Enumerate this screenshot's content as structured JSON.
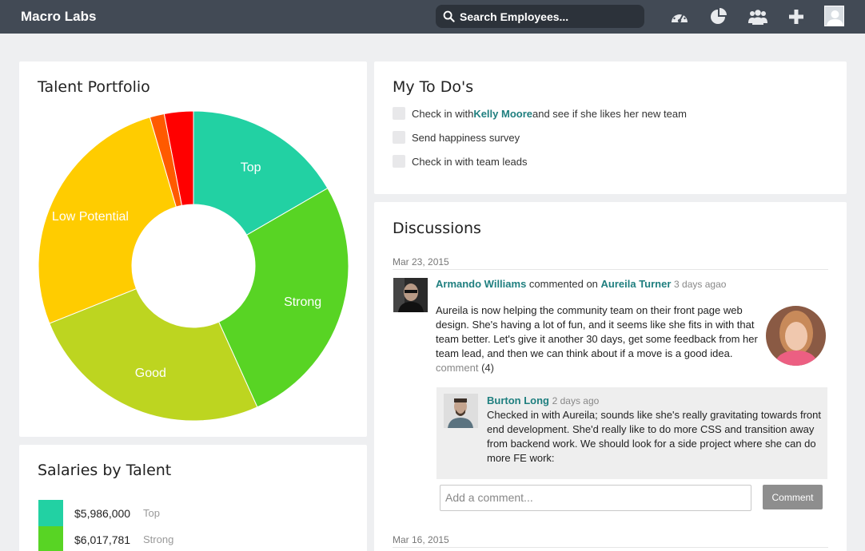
{
  "header": {
    "brand": "Macro Labs",
    "search_placeholder": "Search Employees...",
    "icons": [
      "dashboard-icon",
      "pie-chart-icon",
      "users-icon",
      "plus-icon",
      "avatar"
    ]
  },
  "talent_portfolio": {
    "title": "Talent Portfolio",
    "chart_data": {
      "type": "pie",
      "donut": true,
      "slices": [
        {
          "label": "Top",
          "value": 16.5,
          "color": "#22d1a3"
        },
        {
          "label": "Strong",
          "value": 26.4,
          "color": "#58d424"
        },
        {
          "label": "Good",
          "value": 25.5,
          "color": "#bdd520"
        },
        {
          "label": "Low Potential",
          "value": 26.3,
          "color": "#ffcc00"
        },
        {
          "label": "",
          "value": 1.5,
          "color": "#ff5a00"
        },
        {
          "label": "",
          "value": 3.0,
          "color": "#ff0000"
        }
      ]
    }
  },
  "salaries": {
    "title": "Salaries by Talent",
    "rows": [
      {
        "value": "$5,986,000",
        "label": "Top",
        "color": "#22d1a3"
      },
      {
        "value": "$6,017,781",
        "label": "Strong",
        "color": "#58d424"
      }
    ]
  },
  "todos": {
    "title": "My To Do's",
    "items": [
      {
        "prefix": "Check in with ",
        "link": "Kelly Moore",
        "suffix": " and see if she likes her new team"
      },
      {
        "prefix": "Send happiness survey",
        "link": "",
        "suffix": ""
      },
      {
        "prefix": "Check in with team leads",
        "link": "",
        "suffix": ""
      }
    ]
  },
  "discussions": {
    "title": "Discussions",
    "date1": "Mar 23, 2015",
    "post": {
      "author": "Armando Williams",
      "action": " commented on ",
      "target": "Aureila Turner",
      "ago": "3 days agao",
      "body": "Aureila is now helping the community team on their front page web design. She's having a lot of fun, and it seems like she fits in with that team better. Let's give it another 30 days, get some feedback from her team lead, and then we can think about if a move is a good idea.",
      "comment_link": "comment",
      "comment_count": "(4)"
    },
    "reply": {
      "author": "Burton Long",
      "ago": "2 days ago",
      "body": "Checked in with Aureila; sounds like she's really gravitating towards front end development. She'd really like to do more CSS and transition away from backend work. We should look for a side project where she can do more FE work:"
    },
    "comment_placeholder": "Add a comment...",
    "comment_button": "Comment",
    "date2": "Mar 16, 2015"
  }
}
